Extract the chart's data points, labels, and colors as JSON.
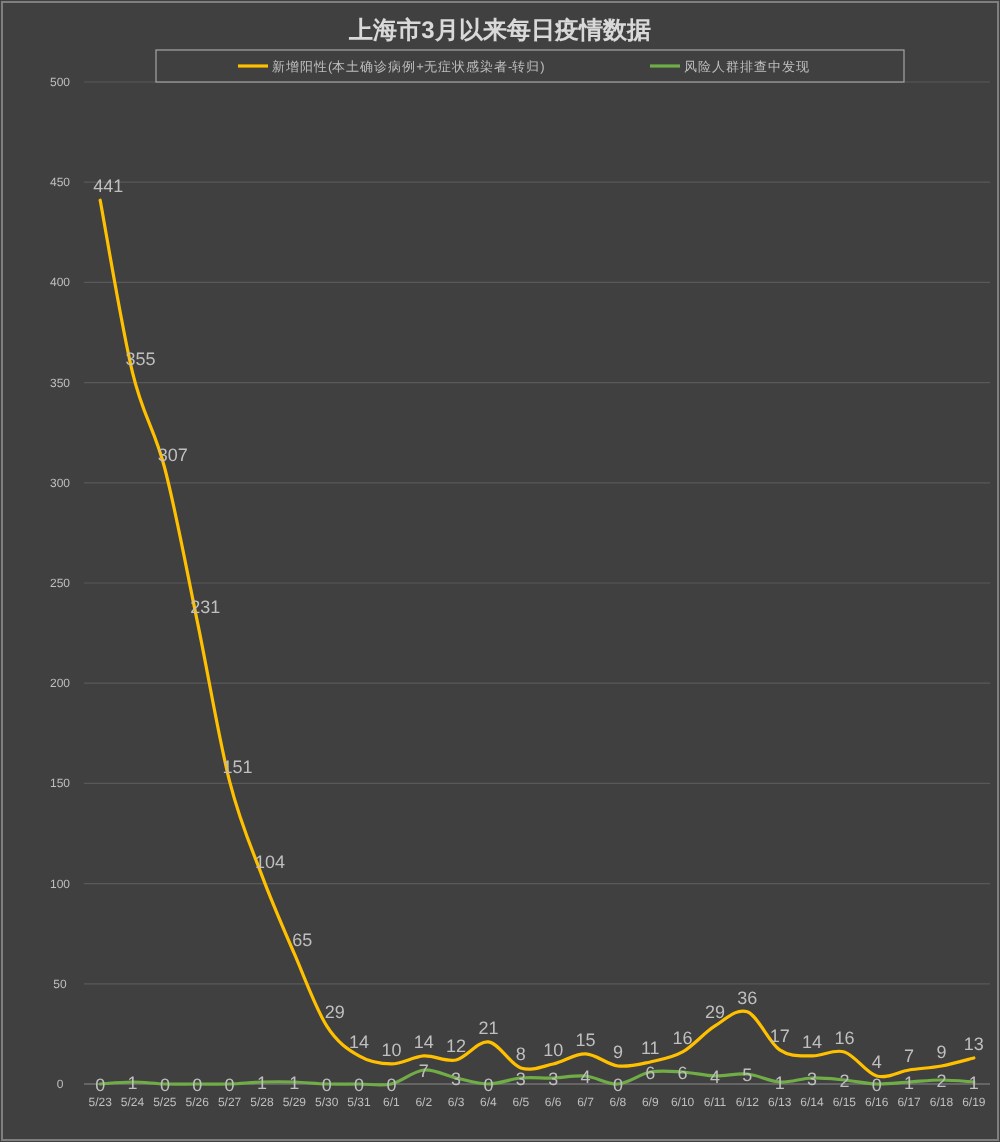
{
  "chart_data": {
    "type": "line",
    "title": "上海市3月以来每日疫情数据",
    "categories": [
      "5/23",
      "5/24",
      "5/25",
      "5/26",
      "5/27",
      "5/28",
      "5/29",
      "5/30",
      "5/31",
      "6/1",
      "6/2",
      "6/3",
      "6/4",
      "6/5",
      "6/6",
      "6/7",
      "6/8",
      "6/9",
      "6/10",
      "6/11",
      "6/12",
      "6/13",
      "6/14",
      "6/15",
      "6/16",
      "6/17",
      "6/18",
      "6/19"
    ],
    "series": [
      {
        "name": "新增阳性(本土确诊病例+无症状感染者-转归)",
        "color": "#ffc000",
        "values": [
          441,
          355,
          307,
          231,
          151,
          104,
          65,
          29,
          14,
          10,
          14,
          12,
          21,
          8,
          10,
          15,
          9,
          11,
          16,
          29,
          36,
          17,
          14,
          16,
          4,
          7,
          9,
          13
        ]
      },
      {
        "name": "风险人群排查中发现",
        "color": "#70ad47",
        "values": [
          0,
          1,
          0,
          0,
          0,
          1,
          1,
          0,
          0,
          0,
          7,
          3,
          0,
          3,
          3,
          4,
          0,
          6,
          6,
          4,
          5,
          1,
          3,
          2,
          0,
          1,
          2,
          1
        ]
      }
    ],
    "ylim": [
      0,
      500
    ],
    "yticks": [
      0,
      50,
      100,
      150,
      200,
      250,
      300,
      350,
      400,
      450,
      500
    ],
    "grid": "y",
    "legend": "top",
    "data_labels": true,
    "marker": "none",
    "line_style": "solid"
  }
}
